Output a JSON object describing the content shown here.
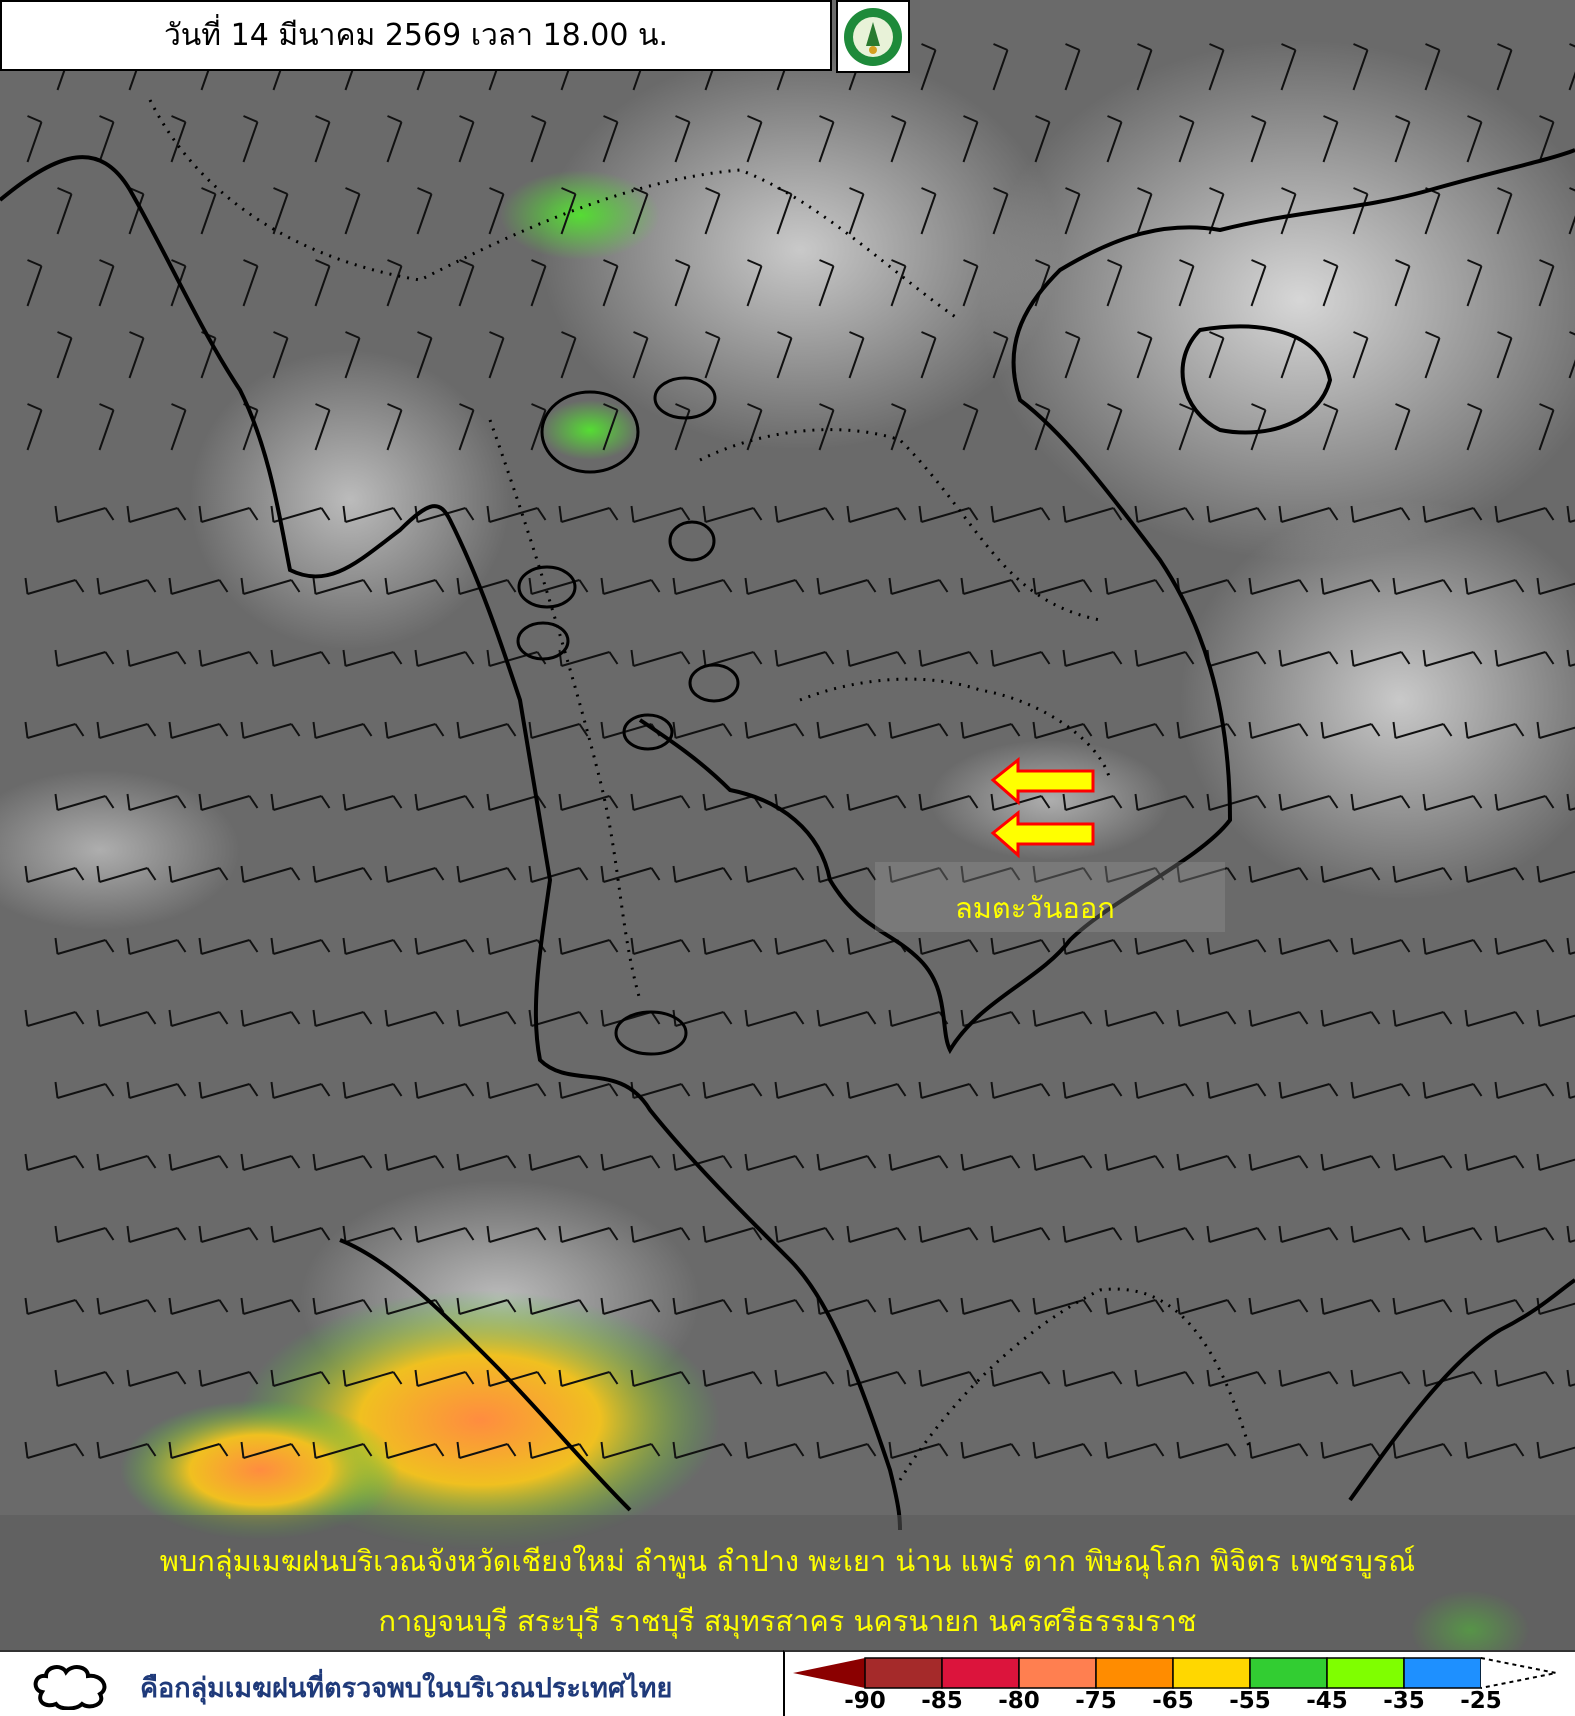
{
  "header": {
    "title": "วันที่ 14 มีนาคม 2569 เวลา 18.00 น.",
    "logo_icon": "thai-meteorological-department-logo"
  },
  "map": {
    "wind_label": "ลมตะวันออก",
    "wind_arrow_icon": "left-arrow-icon",
    "arrow_colors": {
      "fill": "#ffff00",
      "outline": "#ff0000"
    }
  },
  "banner": {
    "line1": "พบกลุ่มเมฆฝนบริเวณจังหวัดเชียงใหม่ ลำพูน ลำปาง พะเยา น่าน แพร่ ตาก พิษณุโลก พิจิตร เพชรบูรณ์",
    "line2": "กาญจนบุรี สระบุรี ราชบุรี สมุทรสาคร นครนายก นครศรีธรรมราช"
  },
  "legend": {
    "cloud_icon": "cloud-outline-icon",
    "cloud_description": "คือกลุ่มเมฆฝนที่ตรวจพบในบริเวณประเทศไทย",
    "colorbar": {
      "colors": [
        "#8b0000",
        "#a52a2a",
        "#dc143c",
        "#ff7f50",
        "#ff8c00",
        "#ffd700",
        "#32cd32",
        "#7fff00",
        "#1e90ff",
        "#ffffff"
      ],
      "ticks": [
        "-90",
        "-85",
        "-80",
        "-75",
        "-65",
        "-55",
        "-45",
        "-35",
        "-25"
      ]
    }
  }
}
